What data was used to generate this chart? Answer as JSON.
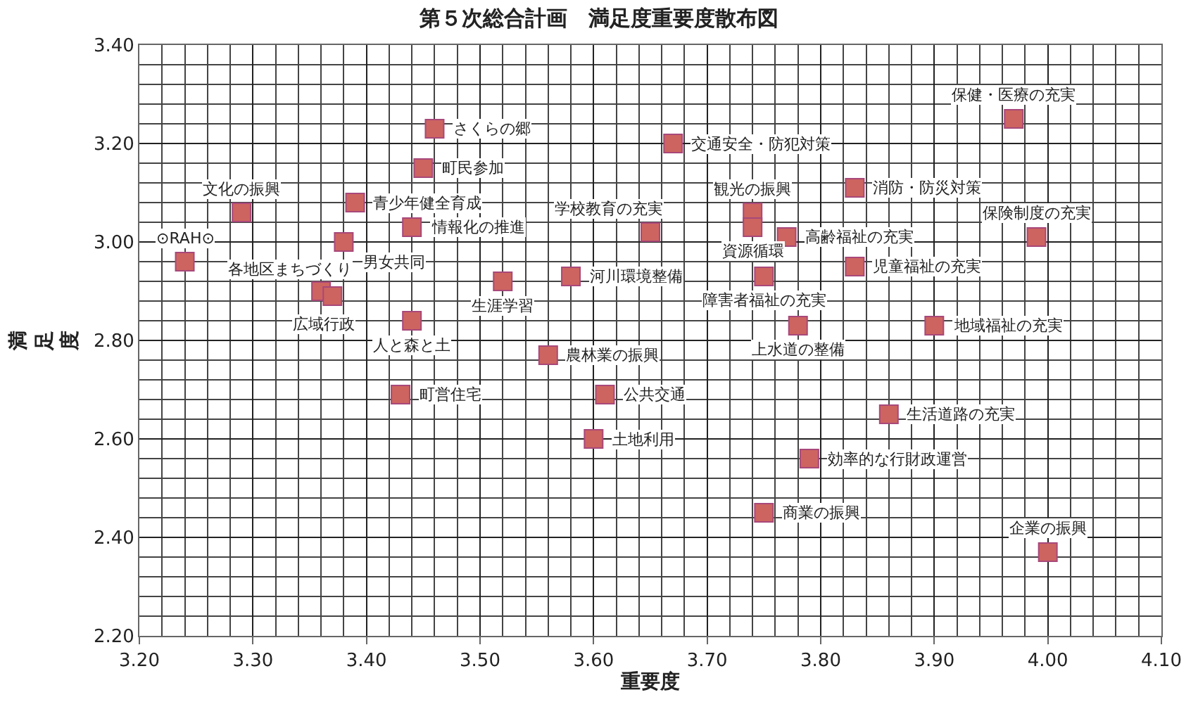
{
  "chart_data": {
    "type": "scatter",
    "title": "第５次総合計画　満足度重要度散布図",
    "xlabel": "重要度",
    "ylabel": "満足度",
    "xlim": [
      3.2,
      4.1
    ],
    "ylim": [
      2.2,
      3.4
    ],
    "xticks": [
      {
        "value": 3.2,
        "label": "3.20"
      },
      {
        "value": 3.3,
        "label": "3.30"
      },
      {
        "value": 3.4,
        "label": "3.40"
      },
      {
        "value": 3.5,
        "label": "3.50"
      },
      {
        "value": 3.6,
        "label": "3.60"
      },
      {
        "value": 3.7,
        "label": "3.70"
      },
      {
        "value": 3.8,
        "label": "3.80"
      },
      {
        "value": 3.9,
        "label": "3.90"
      },
      {
        "value": 4.0,
        "label": "4.00"
      },
      {
        "value": 4.1,
        "label": "4.10"
      }
    ],
    "yticks": [
      {
        "value": 2.2,
        "label": "2.20"
      },
      {
        "value": 2.4,
        "label": "2.40"
      },
      {
        "value": 2.6,
        "label": "2.60"
      },
      {
        "value": 2.8,
        "label": "2.80"
      },
      {
        "value": 3.0,
        "label": "3.00"
      },
      {
        "value": 3.2,
        "label": "3.20"
      },
      {
        "value": 3.4,
        "label": "3.40"
      }
    ],
    "grid": true,
    "marker": "square",
    "series": [
      {
        "color": "#cd6460",
        "x": [
          3.46,
          3.45,
          3.29,
          3.39,
          3.44,
          3.38,
          3.24,
          3.36,
          3.37,
          3.44,
          3.52,
          3.58,
          3.65,
          3.56,
          3.43,
          3.61,
          3.6,
          3.97,
          3.67,
          3.83,
          3.74,
          3.74,
          3.77,
          3.99,
          3.83,
          3.75,
          3.78,
          3.9,
          3.86,
          3.79,
          3.75,
          4.0
        ],
        "values": [
          3.23,
          3.15,
          3.06,
          3.08,
          3.03,
          3.0,
          2.96,
          2.9,
          2.89,
          2.84,
          2.92,
          2.93,
          3.02,
          2.77,
          2.69,
          2.69,
          2.6,
          3.25,
          3.2,
          3.11,
          3.06,
          3.03,
          3.01,
          3.01,
          2.95,
          2.93,
          2.83,
          2.83,
          2.65,
          2.56,
          2.45,
          2.37
        ]
      }
    ],
    "annotations": [
      {
        "text": "さくらの郷",
        "x": 3.46,
        "y": 3.23
      },
      {
        "text": "町民参加",
        "x": 3.45,
        "y": 3.15
      },
      {
        "text": "文化の振興",
        "x": 3.29,
        "y": 3.06
      },
      {
        "text": "青少年健全育成",
        "x": 3.39,
        "y": 3.08
      },
      {
        "text": "情報化の推進",
        "x": 3.44,
        "y": 3.03
      },
      {
        "text": "男女共同",
        "x": 3.38,
        "y": 3.0
      },
      {
        "text": "⊙RAH⊙",
        "x": 3.24,
        "y": 2.96
      },
      {
        "text": "各地区まちづくり",
        "x": 3.36,
        "y": 2.9
      },
      {
        "text": "広域行政",
        "x": 3.37,
        "y": 2.89
      },
      {
        "text": "人と森と土",
        "x": 3.44,
        "y": 2.84
      },
      {
        "text": "生涯学習",
        "x": 3.52,
        "y": 2.92
      },
      {
        "text": "河川環境整備",
        "x": 3.58,
        "y": 2.93
      },
      {
        "text": "学校教育の充実",
        "x": 3.65,
        "y": 3.02
      },
      {
        "text": "農林業の振興",
        "x": 3.56,
        "y": 2.77
      },
      {
        "text": "町営住宅",
        "x": 3.43,
        "y": 2.69
      },
      {
        "text": "公共交通",
        "x": 3.61,
        "y": 2.69
      },
      {
        "text": "土地利用",
        "x": 3.6,
        "y": 2.6
      },
      {
        "text": "保健・医療の充実",
        "x": 3.97,
        "y": 3.25
      },
      {
        "text": "交通安全・防犯対策",
        "x": 3.67,
        "y": 3.2
      },
      {
        "text": "消防・防災対策",
        "x": 3.83,
        "y": 3.11
      },
      {
        "text": "観光の振興",
        "x": 3.74,
        "y": 3.06
      },
      {
        "text": "資源循環",
        "x": 3.74,
        "y": 3.03
      },
      {
        "text": "高齢福祉の充実",
        "x": 3.77,
        "y": 3.01
      },
      {
        "text": "保険制度の充実",
        "x": 3.99,
        "y": 3.01
      },
      {
        "text": "児童福祉の充実",
        "x": 3.83,
        "y": 2.95
      },
      {
        "text": "障害者福祉の充実",
        "x": 3.75,
        "y": 2.93
      },
      {
        "text": "上水道の整備",
        "x": 3.78,
        "y": 2.83
      },
      {
        "text": "地域福祉の充実",
        "x": 3.9,
        "y": 2.83
      },
      {
        "text": "生活道路の充実",
        "x": 3.86,
        "y": 2.65
      },
      {
        "text": "効率的な行財政運営",
        "x": 3.79,
        "y": 2.56
      },
      {
        "text": "商業の振興",
        "x": 3.75,
        "y": 2.45
      },
      {
        "text": "企業の振興",
        "x": 4.0,
        "y": 2.37
      }
    ]
  }
}
